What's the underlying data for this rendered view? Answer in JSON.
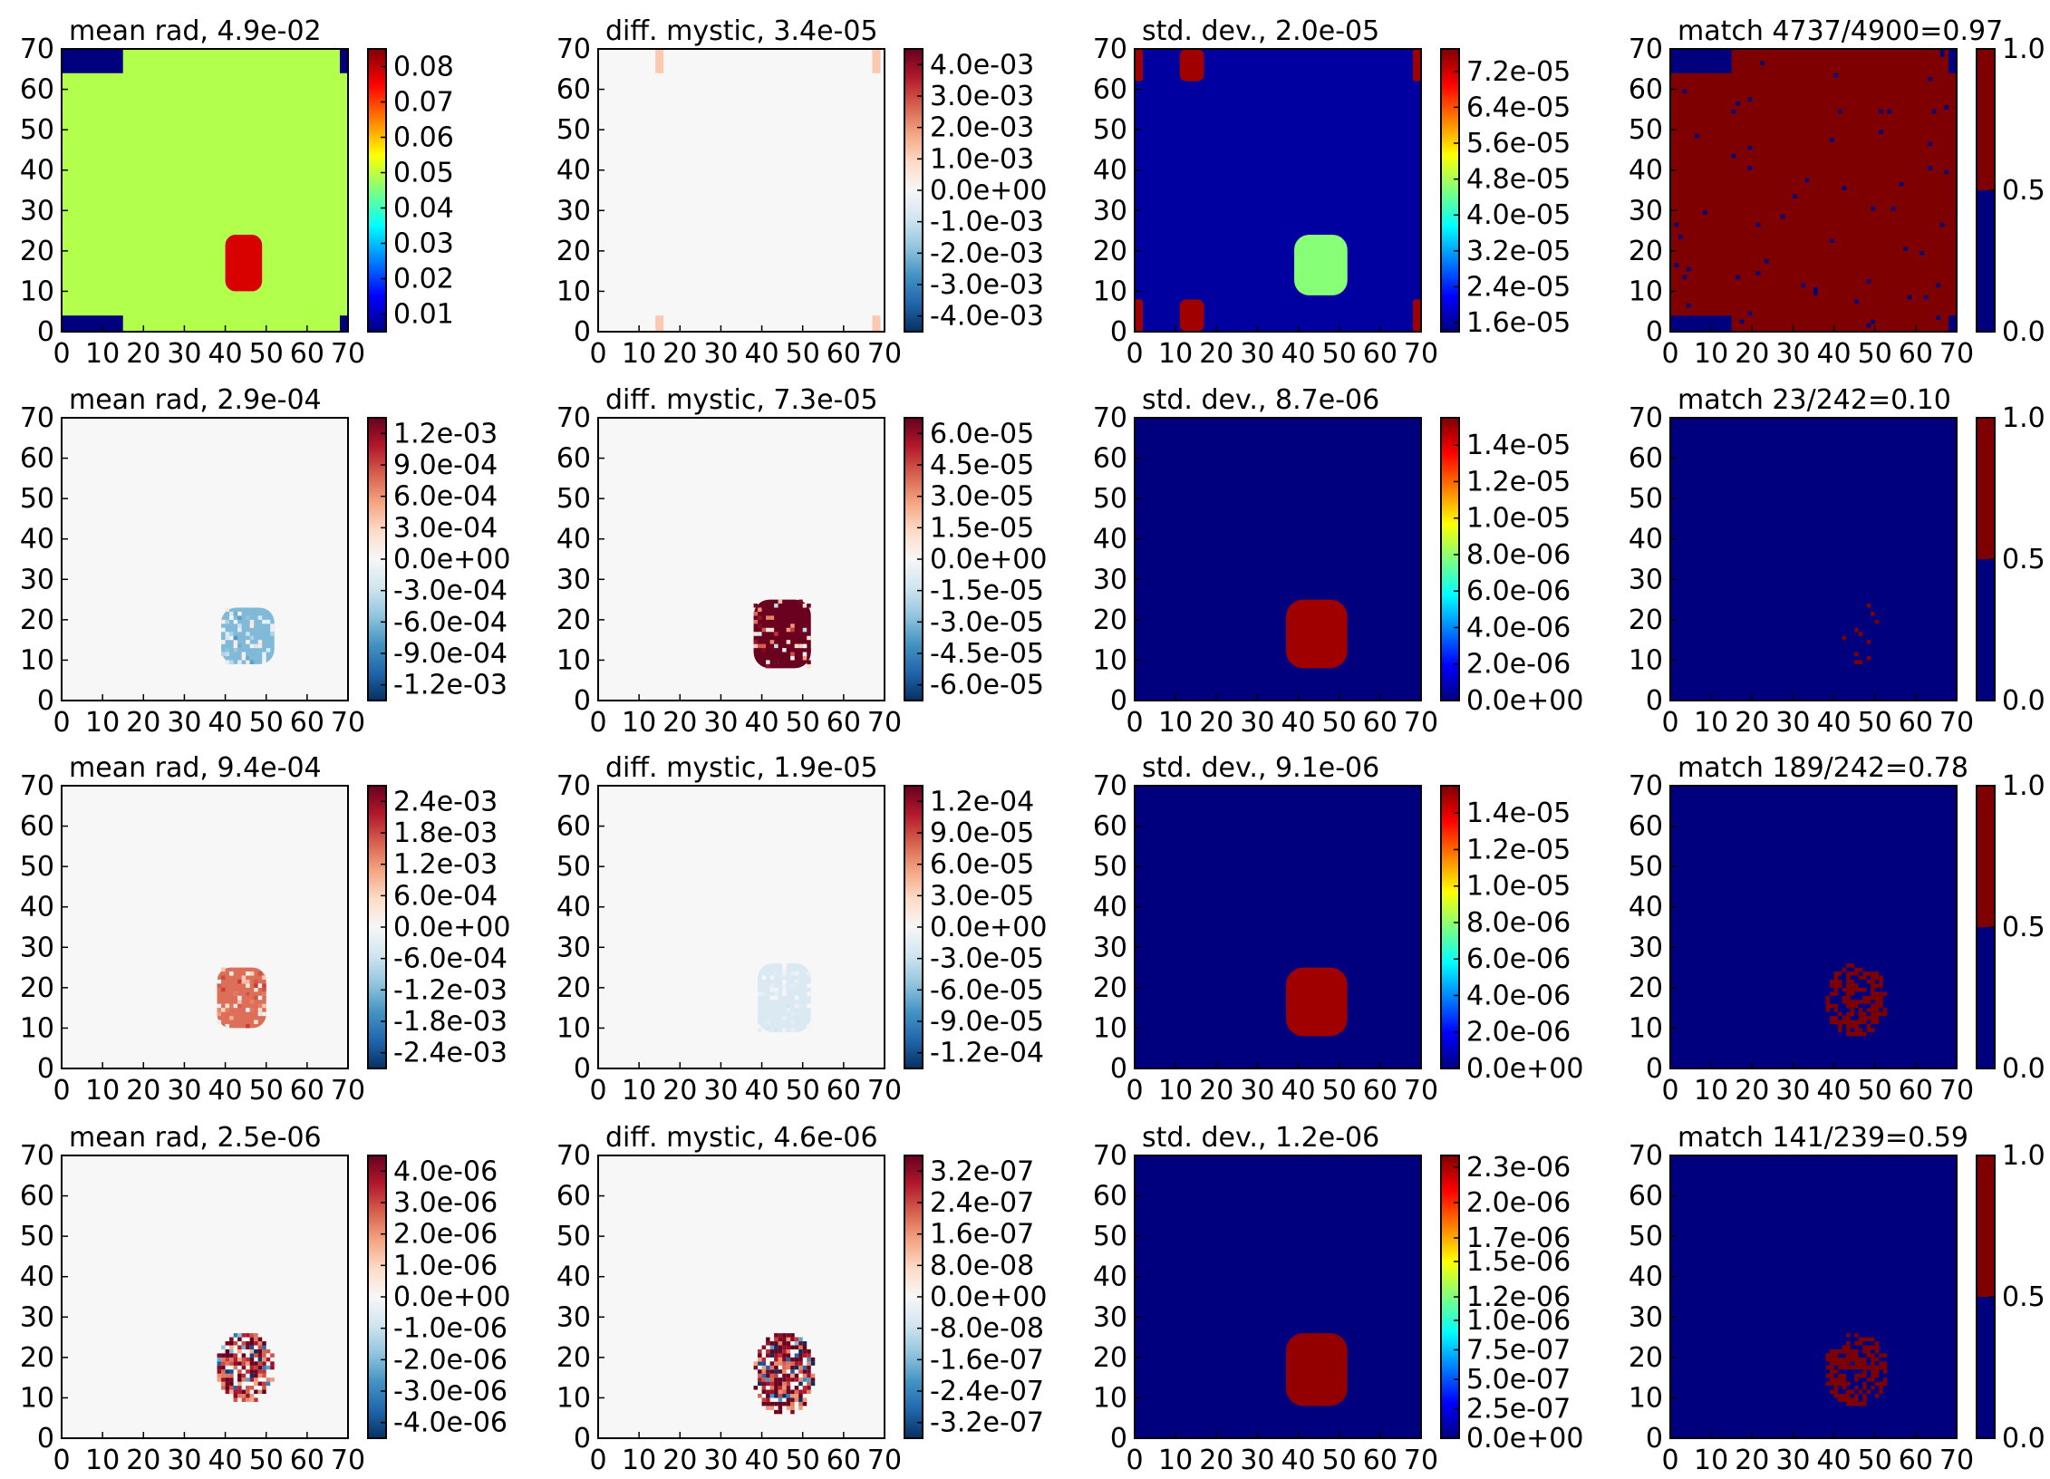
{
  "colors": {
    "jet": [
      "#00007f",
      "#0000ff",
      "#007fff",
      "#00ffff",
      "#7fff7f",
      "#ffff00",
      "#ff7f00",
      "#ff0000",
      "#7f0000"
    ],
    "rdbu": [
      "#053061",
      "#2166ac",
      "#4393c3",
      "#92c5de",
      "#d1e5f0",
      "#f7f7f7",
      "#fddbc7",
      "#f4a582",
      "#d6604d",
      "#b2182b",
      "#67001f"
    ],
    "match_low": "#00007f",
    "match_high": "#7f0000",
    "axes_edge": "#000000"
  },
  "chart_data": [
    {
      "type": "heatmap",
      "title": "mean rad, 4.9e-02",
      "xlim": [
        0,
        70
      ],
      "ylim": [
        0,
        70
      ],
      "xticks": [
        "0",
        "10",
        "20",
        "30",
        "40",
        "50",
        "60",
        "70"
      ],
      "yticks": [
        "0",
        "10",
        "20",
        "30",
        "40",
        "50",
        "60",
        "70"
      ],
      "colormap": "jet",
      "colorbar_ticks": [
        "0.08",
        "0.07",
        "0.06",
        "0.05",
        "0.04",
        "0.03",
        "0.02",
        "0.01"
      ],
      "range": [
        0.005,
        0.085
      ],
      "background": 0.049,
      "features": [
        {
          "kind": "blob",
          "x": [
            40,
            49
          ],
          "y": [
            10,
            24
          ],
          "value": 0.078
        },
        {
          "kind": "corner",
          "x": [
            0,
            15
          ],
          "y": [
            64,
            70
          ],
          "value": 0.005
        },
        {
          "kind": "corner",
          "x": [
            0,
            15
          ],
          "y": [
            0,
            4
          ],
          "value": 0.005
        },
        {
          "kind": "corner",
          "x": [
            68,
            70
          ],
          "y": [
            64,
            70
          ],
          "value": 0.005
        },
        {
          "kind": "corner",
          "x": [
            68,
            70
          ],
          "y": [
            0,
            4
          ],
          "value": 0.005
        }
      ]
    },
    {
      "type": "heatmap",
      "title": "diff. mystic, 3.4e-05",
      "xlim": [
        0,
        70
      ],
      "ylim": [
        0,
        70
      ],
      "xticks": [
        "0",
        "10",
        "20",
        "30",
        "40",
        "50",
        "60",
        "70"
      ],
      "yticks": [
        "0",
        "10",
        "20",
        "30",
        "40",
        "50",
        "60",
        "70"
      ],
      "colormap": "rdbu",
      "colorbar_ticks": [
        "4.0e-03",
        "3.0e-03",
        "2.0e-03",
        "1.0e-03",
        "0.0e+00",
        "-1.0e-03",
        "-2.0e-03",
        "-3.0e-03",
        "-4.0e-03"
      ],
      "range": [
        -0.0045,
        0.0045
      ],
      "background": 0,
      "features": [
        {
          "kind": "stripe",
          "x": [
            14,
            16
          ],
          "y": [
            64,
            70
          ],
          "value": 0.0012
        },
        {
          "kind": "stripe",
          "x": [
            67,
            69
          ],
          "y": [
            64,
            70
          ],
          "value": 0.0012
        },
        {
          "kind": "stripe",
          "x": [
            14,
            16
          ],
          "y": [
            0,
            4
          ],
          "value": 0.0012
        },
        {
          "kind": "stripe",
          "x": [
            67,
            69
          ],
          "y": [
            0,
            4
          ],
          "value": 0.0012
        }
      ]
    },
    {
      "type": "heatmap",
      "title": "std. dev., 2.0e-05",
      "xlim": [
        0,
        70
      ],
      "ylim": [
        0,
        70
      ],
      "xticks": [
        "0",
        "10",
        "20",
        "30",
        "40",
        "50",
        "60",
        "70"
      ],
      "yticks": [
        "0",
        "10",
        "20",
        "30",
        "40",
        "50",
        "60",
        "70"
      ],
      "colormap": "jet",
      "colorbar_ticks": [
        "7.2e-05",
        "6.4e-05",
        "5.6e-05",
        "4.8e-05",
        "4.0e-05",
        "3.2e-05",
        "2.4e-05",
        "1.6e-05"
      ],
      "range": [
        1.4e-05,
        7.7e-05
      ],
      "background": 1.6e-05,
      "features": [
        {
          "kind": "blob",
          "x": [
            39,
            52
          ],
          "y": [
            9,
            24
          ],
          "value": 4.6e-05
        },
        {
          "kind": "spot",
          "x": [
            11,
            17
          ],
          "y": [
            62,
            70
          ],
          "value": 7.5e-05
        },
        {
          "kind": "spot",
          "x": [
            11,
            17
          ],
          "y": [
            0,
            8
          ],
          "value": 7.5e-05
        },
        {
          "kind": "spot",
          "x": [
            0,
            2
          ],
          "y": [
            62,
            70
          ],
          "value": 7.5e-05
        },
        {
          "kind": "spot",
          "x": [
            0,
            2
          ],
          "y": [
            0,
            8
          ],
          "value": 7.5e-05
        },
        {
          "kind": "spot",
          "x": [
            68,
            70
          ],
          "y": [
            62,
            70
          ],
          "value": 7.5e-05
        },
        {
          "kind": "spot",
          "x": [
            68,
            70
          ],
          "y": [
            0,
            8
          ],
          "value": 7.5e-05
        }
      ]
    },
    {
      "type": "heatmap",
      "title": "match 4737/4900=0.97",
      "xlim": [
        0,
        70
      ],
      "ylim": [
        0,
        70
      ],
      "xticks": [
        "0",
        "10",
        "20",
        "30",
        "40",
        "50",
        "60",
        "70"
      ],
      "yticks": [
        "0",
        "10",
        "20",
        "30",
        "40",
        "50",
        "60",
        "70"
      ],
      "colormap": "match",
      "colorbar_ticks": [
        "1.0",
        "0.5",
        "0.0"
      ],
      "range": [
        0,
        1
      ],
      "background": 1,
      "features": [
        {
          "kind": "corner",
          "x": [
            0,
            15
          ],
          "y": [
            64,
            70
          ],
          "value": 0
        },
        {
          "kind": "corner",
          "x": [
            0,
            15
          ],
          "y": [
            0,
            4
          ],
          "value": 0
        },
        {
          "kind": "corner",
          "x": [
            68,
            70
          ],
          "y": [
            64,
            70
          ],
          "value": 0
        },
        {
          "kind": "corner",
          "x": [
            68,
            70
          ],
          "y": [
            0,
            4
          ],
          "value": 0
        }
      ]
    },
    {
      "type": "heatmap",
      "title": "mean rad, 2.9e-04",
      "xlim": [
        0,
        70
      ],
      "ylim": [
        0,
        70
      ],
      "xticks": [
        "0",
        "10",
        "20",
        "30",
        "40",
        "50",
        "60",
        "70"
      ],
      "yticks": [
        "0",
        "10",
        "20",
        "30",
        "40",
        "50",
        "60",
        "70"
      ],
      "colormap": "rdbu",
      "colorbar_ticks": [
        "1.2e-03",
        "9.0e-04",
        "6.0e-04",
        "3.0e-04",
        "0.0e+00",
        "-3.0e-04",
        "-6.0e-04",
        "-9.0e-04",
        "-1.2e-03"
      ],
      "range": [
        -0.00135,
        0.00135
      ],
      "background": 0,
      "features": [
        {
          "kind": "blob",
          "x": [
            39,
            52
          ],
          "y": [
            9,
            23
          ],
          "value": -0.0006
        }
      ]
    },
    {
      "type": "heatmap",
      "title": "diff. mystic, 7.3e-05",
      "xlim": [
        0,
        70
      ],
      "ylim": [
        0,
        70
      ],
      "xticks": [
        "0",
        "10",
        "20",
        "30",
        "40",
        "50",
        "60",
        "70"
      ],
      "yticks": [
        "0",
        "10",
        "20",
        "30",
        "40",
        "50",
        "60",
        "70"
      ],
      "colormap": "rdbu",
      "colorbar_ticks": [
        "6.0e-05",
        "4.5e-05",
        "3.0e-05",
        "1.5e-05",
        "0.0e+00",
        "-1.5e-05",
        "-3.0e-05",
        "-4.5e-05",
        "-6.0e-05"
      ],
      "range": [
        -6.75e-05,
        6.75e-05
      ],
      "background": 0,
      "features": [
        {
          "kind": "blob",
          "x": [
            38,
            52
          ],
          "y": [
            8,
            25
          ],
          "value": 6.7e-05
        }
      ]
    },
    {
      "type": "heatmap",
      "title": "std. dev., 8.7e-06",
      "xlim": [
        0,
        70
      ],
      "ylim": [
        0,
        70
      ],
      "xticks": [
        "0",
        "10",
        "20",
        "30",
        "40",
        "50",
        "60",
        "70"
      ],
      "yticks": [
        "0",
        "10",
        "20",
        "30",
        "40",
        "50",
        "60",
        "70"
      ],
      "colormap": "jet",
      "colorbar_ticks": [
        "1.4e-05",
        "1.2e-05",
        "1.0e-05",
        "8.0e-06",
        "6.0e-06",
        "4.0e-06",
        "2.0e-06",
        "0.0e+00"
      ],
      "range": [
        0,
        1.55e-05
      ],
      "background": 0,
      "features": [
        {
          "kind": "blob",
          "x": [
            37,
            52
          ],
          "y": [
            8,
            25
          ],
          "value": 1.5e-05
        }
      ]
    },
    {
      "type": "heatmap",
      "title": "match 23/242=0.10",
      "xlim": [
        0,
        70
      ],
      "ylim": [
        0,
        70
      ],
      "xticks": [
        "0",
        "10",
        "20",
        "30",
        "40",
        "50",
        "60",
        "70"
      ],
      "yticks": [
        "0",
        "10",
        "20",
        "30",
        "40",
        "50",
        "60",
        "70"
      ],
      "colormap": "match",
      "colorbar_ticks": [
        "1.0",
        "0.5",
        "0.0"
      ],
      "range": [
        0,
        1
      ],
      "background": 0,
      "features": [
        {
          "kind": "speckle",
          "x": [
            42,
            52
          ],
          "y": [
            9,
            24
          ],
          "value": 1
        }
      ]
    },
    {
      "type": "heatmap",
      "title": "mean rad, 9.4e-04",
      "xlim": [
        0,
        70
      ],
      "ylim": [
        0,
        70
      ],
      "xticks": [
        "0",
        "10",
        "20",
        "30",
        "40",
        "50",
        "60",
        "70"
      ],
      "yticks": [
        "0",
        "10",
        "20",
        "30",
        "40",
        "50",
        "60",
        "70"
      ],
      "colormap": "rdbu",
      "colorbar_ticks": [
        "2.4e-03",
        "1.8e-03",
        "1.2e-03",
        "6.0e-04",
        "0.0e+00",
        "-6.0e-04",
        "-1.2e-03",
        "-1.8e-03",
        "-2.4e-03"
      ],
      "range": [
        -0.0027,
        0.0027
      ],
      "background": 0,
      "features": [
        {
          "kind": "blob",
          "x": [
            38,
            50
          ],
          "y": [
            10,
            25
          ],
          "value": 0.0015
        }
      ]
    },
    {
      "type": "heatmap",
      "title": "diff. mystic, 1.9e-05",
      "xlim": [
        0,
        70
      ],
      "ylim": [
        0,
        70
      ],
      "xticks": [
        "0",
        "10",
        "20",
        "30",
        "40",
        "50",
        "60",
        "70"
      ],
      "yticks": [
        "0",
        "10",
        "20",
        "30",
        "40",
        "50",
        "60",
        "70"
      ],
      "colormap": "rdbu",
      "colorbar_ticks": [
        "1.2e-04",
        "9.0e-05",
        "6.0e-05",
        "3.0e-05",
        "0.0e+00",
        "-3.0e-05",
        "-6.0e-05",
        "-9.0e-05",
        "-1.2e-04"
      ],
      "range": [
        -0.000135,
        0.000135
      ],
      "background": 0,
      "features": [
        {
          "kind": "blob",
          "x": [
            39,
            52
          ],
          "y": [
            9,
            26
          ],
          "value": -2e-05
        }
      ]
    },
    {
      "type": "heatmap",
      "title": "std. dev., 9.1e-06",
      "xlim": [
        0,
        70
      ],
      "ylim": [
        0,
        70
      ],
      "xticks": [
        "0",
        "10",
        "20",
        "30",
        "40",
        "50",
        "60",
        "70"
      ],
      "yticks": [
        "0",
        "10",
        "20",
        "30",
        "40",
        "50",
        "60",
        "70"
      ],
      "colormap": "jet",
      "colorbar_ticks": [
        "1.4e-05",
        "1.2e-05",
        "1.0e-05",
        "8.0e-06",
        "6.0e-06",
        "4.0e-06",
        "2.0e-06",
        "0.0e+00"
      ],
      "range": [
        0,
        1.55e-05
      ],
      "background": 0,
      "features": [
        {
          "kind": "blob",
          "x": [
            37,
            52
          ],
          "y": [
            8,
            25
          ],
          "value": 1.5e-05
        }
      ]
    },
    {
      "type": "heatmap",
      "title": "match 189/242=0.78",
      "xlim": [
        0,
        70
      ],
      "ylim": [
        0,
        70
      ],
      "xticks": [
        "0",
        "10",
        "20",
        "30",
        "40",
        "50",
        "60",
        "70"
      ],
      "yticks": [
        "0",
        "10",
        "20",
        "30",
        "40",
        "50",
        "60",
        "70"
      ],
      "colormap": "match",
      "colorbar_ticks": [
        "1.0",
        "0.5",
        "0.0"
      ],
      "range": [
        0,
        1
      ],
      "background": 0,
      "features": [
        {
          "kind": "speckle",
          "x": [
            38,
            53
          ],
          "y": [
            8,
            26
          ],
          "value": 1
        }
      ]
    },
    {
      "type": "heatmap",
      "title": "mean rad, 2.5e-06",
      "xlim": [
        0,
        70
      ],
      "ylim": [
        0,
        70
      ],
      "xticks": [
        "0",
        "10",
        "20",
        "30",
        "40",
        "50",
        "60",
        "70"
      ],
      "yticks": [
        "0",
        "10",
        "20",
        "30",
        "40",
        "50",
        "60",
        "70"
      ],
      "colormap": "rdbu",
      "colorbar_ticks": [
        "4.0e-06",
        "3.0e-06",
        "2.0e-06",
        "1.0e-06",
        "0.0e+00",
        "-1.0e-06",
        "-2.0e-06",
        "-3.0e-06",
        "-4.0e-06"
      ],
      "range": [
        -4.5e-06,
        4.5e-06
      ],
      "background": 0,
      "features": [
        {
          "kind": "speckle",
          "x": [
            38,
            52
          ],
          "y": [
            9,
            26
          ],
          "value": 4e-06
        }
      ]
    },
    {
      "type": "heatmap",
      "title": "diff. mystic, 4.6e-06",
      "xlim": [
        0,
        70
      ],
      "ylim": [
        0,
        70
      ],
      "xticks": [
        "0",
        "10",
        "20",
        "30",
        "40",
        "50",
        "60",
        "70"
      ],
      "yticks": [
        "0",
        "10",
        "20",
        "30",
        "40",
        "50",
        "60",
        "70"
      ],
      "colormap": "rdbu",
      "colorbar_ticks": [
        "3.2e-07",
        "2.4e-07",
        "1.6e-07",
        "8.0e-08",
        "0.0e+00",
        "-8.0e-08",
        "-1.6e-07",
        "-2.4e-07",
        "-3.2e-07"
      ],
      "range": [
        -3.6e-07,
        3.6e-07
      ],
      "background": 0,
      "features": [
        {
          "kind": "speckle",
          "x": [
            38,
            53
          ],
          "y": [
            6,
            26
          ],
          "value": 3.6e-07
        }
      ]
    },
    {
      "type": "heatmap",
      "title": "std. dev., 1.2e-06",
      "xlim": [
        0,
        70
      ],
      "ylim": [
        0,
        70
      ],
      "xticks": [
        "0",
        "10",
        "20",
        "30",
        "40",
        "50",
        "60",
        "70"
      ],
      "yticks": [
        "0",
        "10",
        "20",
        "30",
        "40",
        "50",
        "60",
        "70"
      ],
      "colormap": "jet",
      "colorbar_ticks": [
        "2.3e-06",
        "2.0e-06",
        "1.7e-06",
        "1.5e-06",
        "1.2e-06",
        "1.0e-06",
        "7.5e-07",
        "5.0e-07",
        "2.5e-07",
        "0.0e+00"
      ],
      "range": [
        0,
        2.4e-06
      ],
      "background": 0,
      "features": [
        {
          "kind": "blob",
          "x": [
            37,
            52
          ],
          "y": [
            8,
            26
          ],
          "value": 2.35e-06
        }
      ]
    },
    {
      "type": "heatmap",
      "title": "match 141/239=0.59",
      "xlim": [
        0,
        70
      ],
      "ylim": [
        0,
        70
      ],
      "xticks": [
        "0",
        "10",
        "20",
        "30",
        "40",
        "50",
        "60",
        "70"
      ],
      "yticks": [
        "0",
        "10",
        "20",
        "30",
        "40",
        "50",
        "60",
        "70"
      ],
      "colormap": "match",
      "colorbar_ticks": [
        "1.0",
        "0.5",
        "0.0"
      ],
      "range": [
        0,
        1
      ],
      "background": 0,
      "features": [
        {
          "kind": "speckle",
          "x": [
            38,
            53
          ],
          "y": [
            8,
            26
          ],
          "value": 1
        }
      ]
    }
  ]
}
